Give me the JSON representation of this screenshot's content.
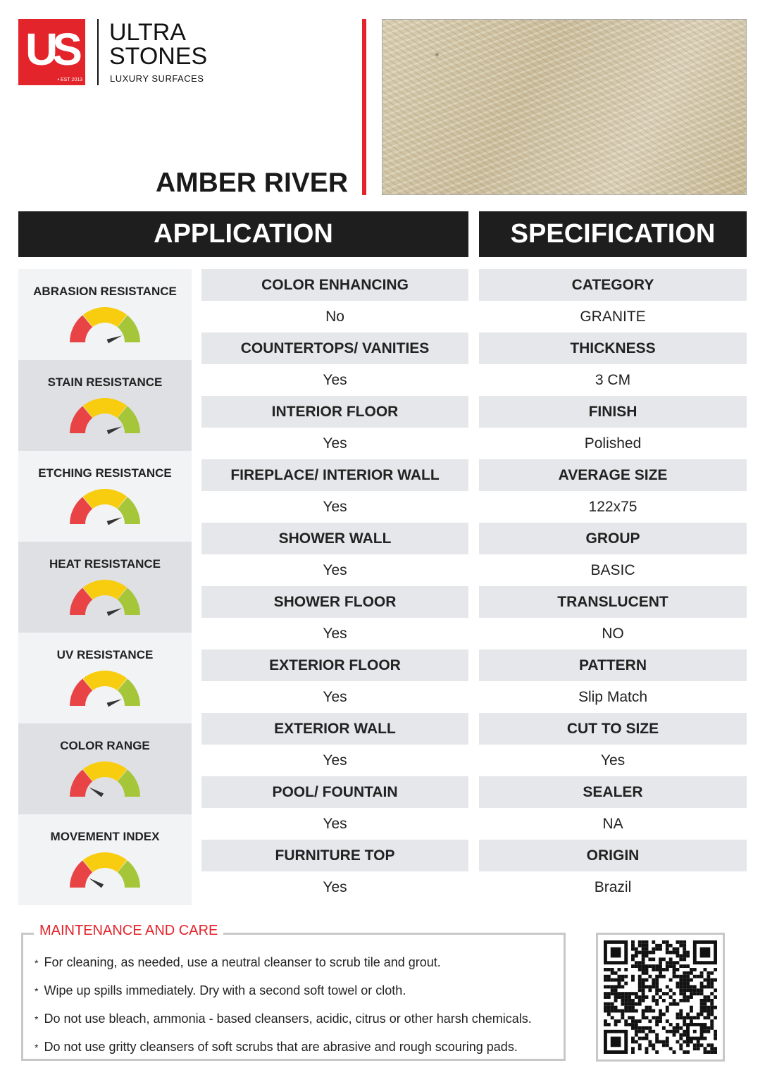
{
  "brand": {
    "logo_letters": "US",
    "est": "• EST 2013",
    "line1": "ULTRA",
    "line2": "STONES",
    "line3": "LUXURY SURFACES",
    "accent": "#e3242b"
  },
  "product": {
    "name": "AMBER RIVER"
  },
  "headers": {
    "application": "APPLICATION",
    "specification": "SPECIFICATION"
  },
  "gauge_colors": {
    "low": "#e84445",
    "mid": "#f8cd10",
    "high": "#a5c639",
    "needle": "#333333"
  },
  "gauges": [
    {
      "label": "ABRASION RESISTANCE",
      "level": 0.88
    },
    {
      "label": "STAIN RESISTANCE",
      "level": 0.88
    },
    {
      "label": "ETCHING RESISTANCE",
      "level": 0.88
    },
    {
      "label": "HEAT RESISTANCE",
      "level": 0.88
    },
    {
      "label": "UV RESISTANCE",
      "level": 0.88
    },
    {
      "label": "COLOR RANGE",
      "level": 0.17
    },
    {
      "label": "MOVEMENT INDEX",
      "level": 0.17
    }
  ],
  "application": [
    {
      "label": "COLOR ENHANCING",
      "value": "No"
    },
    {
      "label": "COUNTERTOPS/ VANITIES",
      "value": "Yes"
    },
    {
      "label": "INTERIOR FLOOR",
      "value": "Yes"
    },
    {
      "label": "FIREPLACE/ INTERIOR WALL",
      "value": "Yes"
    },
    {
      "label": "SHOWER WALL",
      "value": "Yes"
    },
    {
      "label": "SHOWER FLOOR",
      "value": "Yes"
    },
    {
      "label": "EXTERIOR FLOOR",
      "value": "Yes"
    },
    {
      "label": "EXTERIOR WALL",
      "value": "Yes"
    },
    {
      "label": "POOL/ FOUNTAIN",
      "value": "Yes"
    },
    {
      "label": "FURNITURE TOP",
      "value": "Yes"
    }
  ],
  "specification": [
    {
      "label": "CATEGORY",
      "value": "GRANITE"
    },
    {
      "label": "THICKNESS",
      "value": "3 CM"
    },
    {
      "label": "FINISH",
      "value": "Polished"
    },
    {
      "label": "AVERAGE SIZE",
      "value": "122x75"
    },
    {
      "label": "GROUP",
      "value": "BASIC"
    },
    {
      "label": "TRANSLUCENT",
      "value": "NO"
    },
    {
      "label": "PATTERN",
      "value": "Slip Match"
    },
    {
      "label": "CUT TO SIZE",
      "value": "Yes"
    },
    {
      "label": "SEALER",
      "value": "NA"
    },
    {
      "label": "ORIGIN",
      "value": "Brazil"
    }
  ],
  "maintenance": {
    "title": "MAINTENANCE AND CARE",
    "bullet": "*",
    "items": [
      "For cleaning, as needed, use a neutral cleanser to scrub tile and grout.",
      "Wipe up spills immediately. Dry with a second soft towel or cloth.",
      "Do not use bleach, ammonia - based cleansers, acidic, citrus or other harsh chemicals.",
      "Do not use gritty cleansers of soft scrubs that are abrasive and rough scouring pads."
    ]
  },
  "qr_icon": "qr-code"
}
